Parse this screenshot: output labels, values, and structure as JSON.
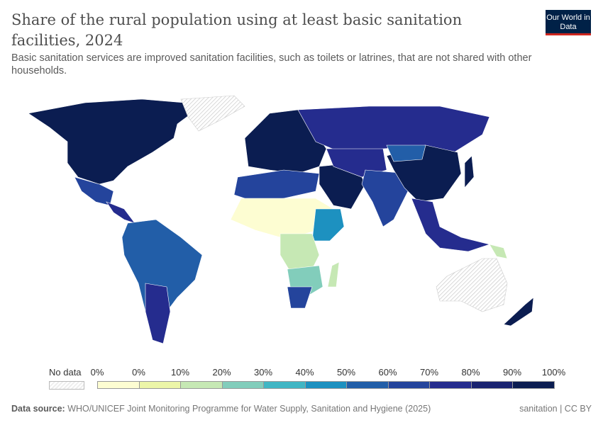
{
  "title": "Share of the rural population using at least basic sanitation facilities, 2024",
  "subtitle": "Basic sanitation services are improved sanitation facilities, such as toilets or latrines, that are not shared with other households.",
  "logo": "Our World in Data",
  "legend": {
    "no_data_label": "No data",
    "labels": [
      "0%",
      "0%",
      "10%",
      "20%",
      "30%",
      "40%",
      "50%",
      "60%",
      "70%",
      "80%",
      "90%",
      "100%"
    ],
    "colors": [
      "#fdfdd2",
      "#ecf5a8",
      "#c6e8b4",
      "#82cdbb",
      "#41b6c4",
      "#1d91c0",
      "#225ea8",
      "#24449c",
      "#252c8e",
      "#1a2370",
      "#0b1d51"
    ]
  },
  "footer": {
    "source_label": "Data source:",
    "source": "WHO/UNICEF Joint Monitoring Programme for Water Supply, Sanitation and Hygiene (2025)",
    "right": "sanitation | CC BY"
  }
}
